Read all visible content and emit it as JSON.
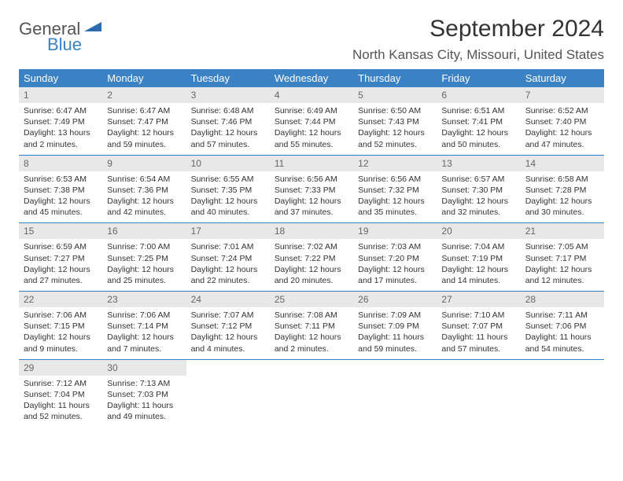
{
  "logo": {
    "part1": "General",
    "part2": "Blue"
  },
  "title": "September 2024",
  "location": "North Kansas City, Missouri, United States",
  "colors": {
    "header_bg": "#3b82c4",
    "header_text": "#ffffff",
    "daynum_bg": "#e8e8e8",
    "daynum_text": "#666666",
    "body_text": "#333333",
    "divider": "#3b82c4"
  },
  "day_names": [
    "Sunday",
    "Monday",
    "Tuesday",
    "Wednesday",
    "Thursday",
    "Friday",
    "Saturday"
  ],
  "days": [
    {
      "n": 1,
      "sunrise": "6:47 AM",
      "sunset": "7:49 PM",
      "daylight": "13 hours and 2 minutes."
    },
    {
      "n": 2,
      "sunrise": "6:47 AM",
      "sunset": "7:47 PM",
      "daylight": "12 hours and 59 minutes."
    },
    {
      "n": 3,
      "sunrise": "6:48 AM",
      "sunset": "7:46 PM",
      "daylight": "12 hours and 57 minutes."
    },
    {
      "n": 4,
      "sunrise": "6:49 AM",
      "sunset": "7:44 PM",
      "daylight": "12 hours and 55 minutes."
    },
    {
      "n": 5,
      "sunrise": "6:50 AM",
      "sunset": "7:43 PM",
      "daylight": "12 hours and 52 minutes."
    },
    {
      "n": 6,
      "sunrise": "6:51 AM",
      "sunset": "7:41 PM",
      "daylight": "12 hours and 50 minutes."
    },
    {
      "n": 7,
      "sunrise": "6:52 AM",
      "sunset": "7:40 PM",
      "daylight": "12 hours and 47 minutes."
    },
    {
      "n": 8,
      "sunrise": "6:53 AM",
      "sunset": "7:38 PM",
      "daylight": "12 hours and 45 minutes."
    },
    {
      "n": 9,
      "sunrise": "6:54 AM",
      "sunset": "7:36 PM",
      "daylight": "12 hours and 42 minutes."
    },
    {
      "n": 10,
      "sunrise": "6:55 AM",
      "sunset": "7:35 PM",
      "daylight": "12 hours and 40 minutes."
    },
    {
      "n": 11,
      "sunrise": "6:56 AM",
      "sunset": "7:33 PM",
      "daylight": "12 hours and 37 minutes."
    },
    {
      "n": 12,
      "sunrise": "6:56 AM",
      "sunset": "7:32 PM",
      "daylight": "12 hours and 35 minutes."
    },
    {
      "n": 13,
      "sunrise": "6:57 AM",
      "sunset": "7:30 PM",
      "daylight": "12 hours and 32 minutes."
    },
    {
      "n": 14,
      "sunrise": "6:58 AM",
      "sunset": "7:28 PM",
      "daylight": "12 hours and 30 minutes."
    },
    {
      "n": 15,
      "sunrise": "6:59 AM",
      "sunset": "7:27 PM",
      "daylight": "12 hours and 27 minutes."
    },
    {
      "n": 16,
      "sunrise": "7:00 AM",
      "sunset": "7:25 PM",
      "daylight": "12 hours and 25 minutes."
    },
    {
      "n": 17,
      "sunrise": "7:01 AM",
      "sunset": "7:24 PM",
      "daylight": "12 hours and 22 minutes."
    },
    {
      "n": 18,
      "sunrise": "7:02 AM",
      "sunset": "7:22 PM",
      "daylight": "12 hours and 20 minutes."
    },
    {
      "n": 19,
      "sunrise": "7:03 AM",
      "sunset": "7:20 PM",
      "daylight": "12 hours and 17 minutes."
    },
    {
      "n": 20,
      "sunrise": "7:04 AM",
      "sunset": "7:19 PM",
      "daylight": "12 hours and 14 minutes."
    },
    {
      "n": 21,
      "sunrise": "7:05 AM",
      "sunset": "7:17 PM",
      "daylight": "12 hours and 12 minutes."
    },
    {
      "n": 22,
      "sunrise": "7:06 AM",
      "sunset": "7:15 PM",
      "daylight": "12 hours and 9 minutes."
    },
    {
      "n": 23,
      "sunrise": "7:06 AM",
      "sunset": "7:14 PM",
      "daylight": "12 hours and 7 minutes."
    },
    {
      "n": 24,
      "sunrise": "7:07 AM",
      "sunset": "7:12 PM",
      "daylight": "12 hours and 4 minutes."
    },
    {
      "n": 25,
      "sunrise": "7:08 AM",
      "sunset": "7:11 PM",
      "daylight": "12 hours and 2 minutes."
    },
    {
      "n": 26,
      "sunrise": "7:09 AM",
      "sunset": "7:09 PM",
      "daylight": "11 hours and 59 minutes."
    },
    {
      "n": 27,
      "sunrise": "7:10 AM",
      "sunset": "7:07 PM",
      "daylight": "11 hours and 57 minutes."
    },
    {
      "n": 28,
      "sunrise": "7:11 AM",
      "sunset": "7:06 PM",
      "daylight": "11 hours and 54 minutes."
    },
    {
      "n": 29,
      "sunrise": "7:12 AM",
      "sunset": "7:04 PM",
      "daylight": "11 hours and 52 minutes."
    },
    {
      "n": 30,
      "sunrise": "7:13 AM",
      "sunset": "7:03 PM",
      "daylight": "11 hours and 49 minutes."
    }
  ],
  "labels": {
    "sunrise": "Sunrise:",
    "sunset": "Sunset:",
    "daylight": "Daylight:"
  }
}
